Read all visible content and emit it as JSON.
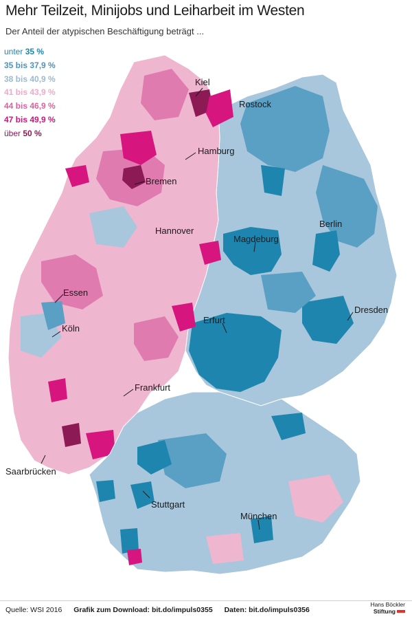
{
  "title": "Mehr Teilzeit, Minijobs und Leiharbeit im Westen",
  "subtitle": "Der Anteil der atypischen Beschäftigung beträgt ...",
  "legend": [
    {
      "pre": "unter ",
      "val": "35 %",
      "color": "#1e86ae"
    },
    {
      "pre": "",
      "val": "35 bis 37,9 %",
      "color": "#5a9fc4"
    },
    {
      "pre": "",
      "val": "38 bis 40,9 %",
      "color": "#a8c6dc"
    },
    {
      "pre": "",
      "val": "41 bis 43,9 %",
      "color": "#efb6cf"
    },
    {
      "pre": "",
      "val": "44 bis 46,9 %",
      "color": "#e07bb0"
    },
    {
      "pre": "",
      "val": "47 bis 49,9 %",
      "color": "#d6157f"
    },
    {
      "pre": "über ",
      "val": "50 %",
      "color": "#8c1a55"
    }
  ],
  "cities": {
    "kiel": "Kiel",
    "rostock": "Rostock",
    "hamburg": "Hamburg",
    "bremen": "Bremen",
    "hannover": "Hannover",
    "magdeburg": "Magdeburg",
    "berlin": "Berlin",
    "essen": "Essen",
    "koeln": "Köln",
    "erfurt": "Erfurt",
    "dresden": "Dresden",
    "frankfurt": "Frankfurt",
    "saarbruecken": "Saarbrücken",
    "stuttgart": "Stuttgart",
    "muenchen": "München"
  },
  "footer": {
    "source": "Quelle: WSI 2016",
    "download": "Grafik zum Download: bit.do/impuls0355",
    "data": "Daten: bit.do/impuls0356"
  },
  "logo": {
    "line1": "Hans Böckler",
    "line2": "Stiftung"
  }
}
